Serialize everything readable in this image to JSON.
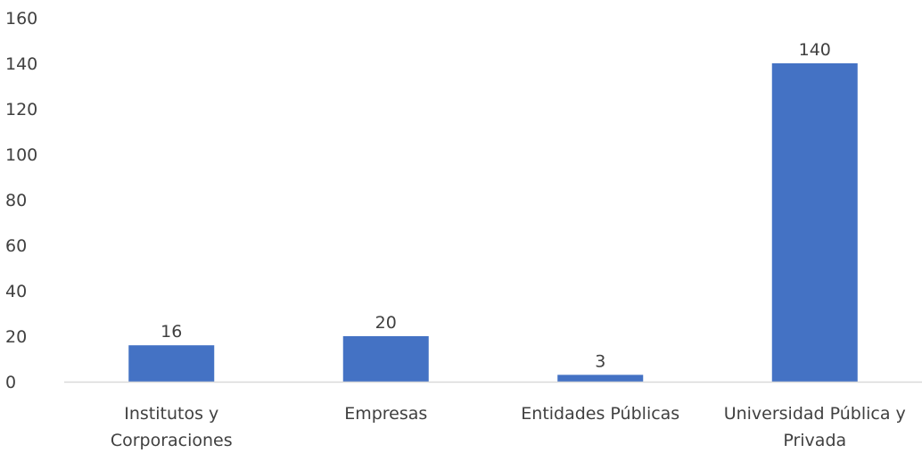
{
  "chart_data": {
    "type": "bar",
    "categories": [
      [
        "Institutos y",
        "Corporaciones"
      ],
      [
        "Empresas"
      ],
      [
        "Entidades Públicas"
      ],
      [
        "Universidad Pública y",
        "Privada"
      ]
    ],
    "values": [
      16,
      20,
      3,
      140
    ],
    "data_labels": [
      "16",
      "20",
      "3",
      "140"
    ],
    "ylim": [
      0,
      160
    ],
    "yticks": [
      0,
      20,
      40,
      60,
      80,
      100,
      120,
      140,
      160
    ],
    "title": "",
    "xlabel": "",
    "ylabel": "",
    "grid": false,
    "legend": "none",
    "bar_color": "#4472C4",
    "axis_color": "#D9D9D9",
    "text_color": "#404040"
  }
}
